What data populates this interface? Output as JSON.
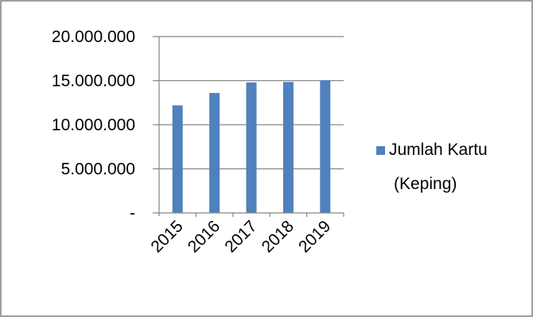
{
  "chart_data": {
    "type": "bar",
    "categories": [
      "2015",
      "2016",
      "2017",
      "2018",
      "2019"
    ],
    "series": [
      {
        "name": "Jumlah Kartu (Keping)",
        "name_lines": [
          "Jumlah Kartu",
          "(Keping)"
        ],
        "values": [
          12200000,
          13600000,
          14800000,
          14850000,
          15050000
        ],
        "color": "#4F81BD"
      }
    ],
    "y_ticks": [
      {
        "value": 0,
        "label": "-"
      },
      {
        "value": 5000000,
        "label": "5.000.000"
      },
      {
        "value": 10000000,
        "label": "10.000.000"
      },
      {
        "value": 15000000,
        "label": "15.000.000"
      },
      {
        "value": 20000000,
        "label": "20.000.000"
      }
    ],
    "ylim": [
      0,
      20000000
    ],
    "grid": true,
    "legend_position": "right",
    "colors": {
      "border": "#7F7F7F",
      "gridline": "#868686",
      "axis": "#868686"
    }
  }
}
